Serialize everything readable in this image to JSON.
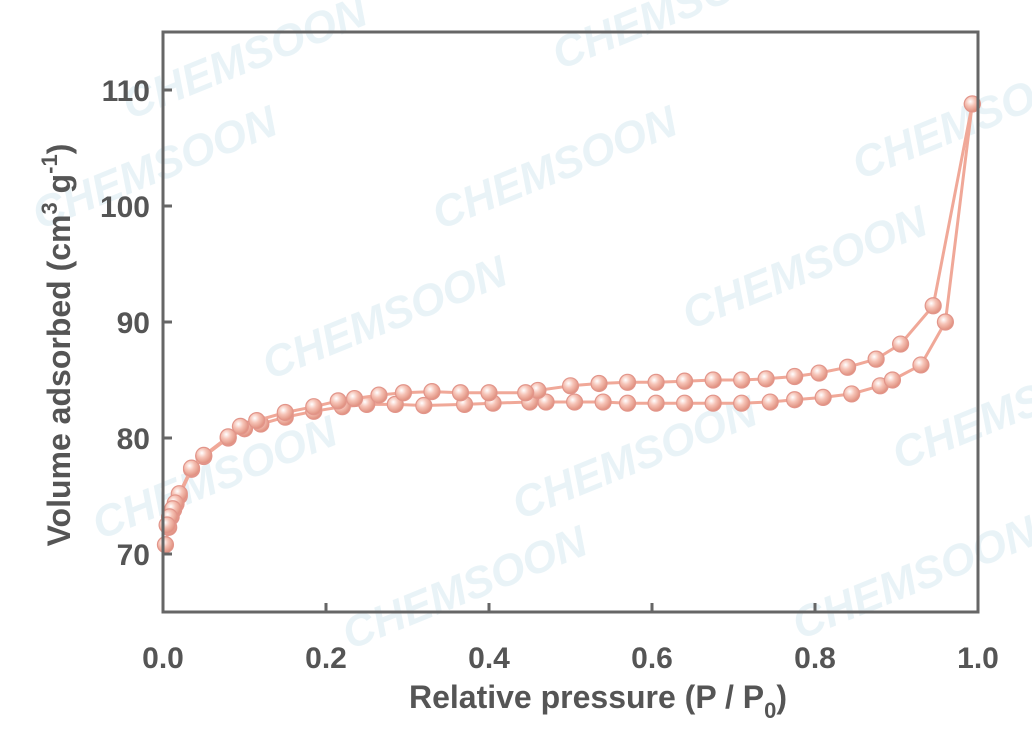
{
  "watermark_text": "CHEMSOON",
  "chart_data": {
    "type": "line",
    "title": "",
    "xlabel": "Relative pressure (P / P",
    "xlabel_sub": "0",
    "xlabel_end": ")",
    "ylabel": "Volume adsorbed (cm",
    "ylabel_sup1": "3",
    "ylabel_mid": " g",
    "ylabel_sup2": "-1",
    "ylabel_end": ")",
    "xlim": [
      0.0,
      1.0
    ],
    "ylim": [
      65,
      115
    ],
    "xticks": [
      0.0,
      0.2,
      0.4,
      0.6,
      0.8,
      1.0
    ],
    "xtick_labels": [
      "0.0",
      "0.2",
      "0.4",
      "0.6",
      "0.8",
      "1.0"
    ],
    "yticks": [
      70,
      80,
      90,
      100,
      110
    ],
    "ytick_labels": [
      "70",
      "80",
      "90",
      "100",
      "110"
    ],
    "grid": false,
    "legend": "none",
    "color": "#f0a898",
    "series": [
      {
        "x": [
          0.003,
          0.007,
          0.01,
          0.013,
          0.016,
          0.02,
          0.035,
          0.05,
          0.08,
          0.1,
          0.12,
          0.15,
          0.185,
          0.22,
          0.25,
          0.285,
          0.32,
          0.37,
          0.405,
          0.45,
          0.47,
          0.505,
          0.54,
          0.57,
          0.605,
          0.64,
          0.675,
          0.71,
          0.745,
          0.775,
          0.81,
          0.845,
          0.88,
          0.895,
          0.93,
          0.96,
          0.993
        ],
        "y": [
          70.8,
          72.3,
          73.2,
          73.8,
          74.3,
          75.0,
          77.3,
          78.4,
          80.0,
          80.8,
          81.2,
          81.8,
          82.3,
          82.7,
          82.9,
          82.9,
          82.8,
          82.9,
          83.0,
          83.1,
          83.1,
          83.1,
          83.1,
          83.0,
          83.0,
          83.0,
          83.0,
          83.0,
          83.1,
          83.3,
          83.5,
          83.8,
          84.5,
          85.0,
          86.3,
          90.0,
          108.8
        ]
      },
      {
        "x": [
          0.993,
          0.945,
          0.905,
          0.875,
          0.84,
          0.805,
          0.775,
          0.74,
          0.71,
          0.675,
          0.64,
          0.605,
          0.57,
          0.535,
          0.5,
          0.46,
          0.445,
          0.4,
          0.365,
          0.33,
          0.295,
          0.265,
          0.235,
          0.215,
          0.185,
          0.15,
          0.115,
          0.095,
          0.08,
          0.05,
          0.035,
          0.02,
          0.015,
          0.012,
          0.008,
          0.005
        ],
        "y": [
          108.8,
          91.4,
          88.1,
          86.8,
          86.1,
          85.6,
          85.3,
          85.1,
          85.0,
          85.0,
          84.9,
          84.8,
          84.8,
          84.7,
          84.5,
          84.1,
          83.9,
          83.9,
          83.9,
          84.0,
          83.9,
          83.7,
          83.4,
          83.2,
          82.7,
          82.2,
          81.5,
          81.0,
          80.1,
          78.5,
          77.4,
          75.2,
          74.4,
          73.9,
          73.2,
          72.5
        ]
      }
    ]
  }
}
